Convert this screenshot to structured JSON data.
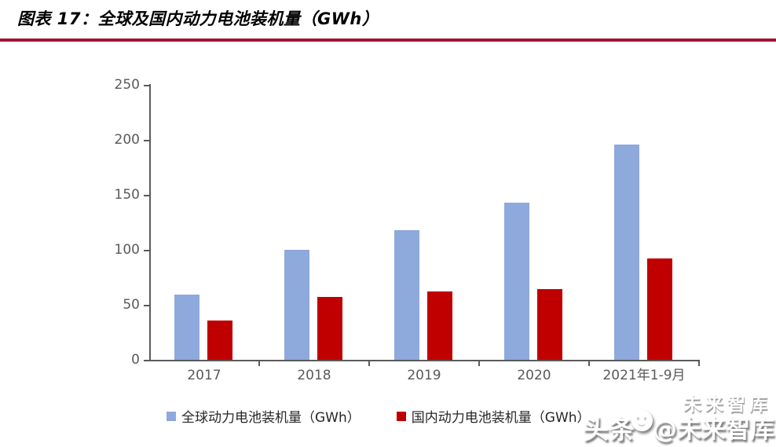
{
  "title": "图表 17：全球及国内动力电池装机量（GWh）",
  "colors": {
    "title_rule": "#A21535",
    "axis_line": "#5a5a5a",
    "axis_label": "#595959",
    "legend_text": "#262626",
    "global_series": "#8EA9DB",
    "domestic_series": "#C00000"
  },
  "chart_data": {
    "type": "bar",
    "title": "全球及国内动力电池装机量（GWh）",
    "categories": [
      "2017",
      "2018",
      "2019",
      "2020",
      "2021年1-9月"
    ],
    "series": [
      {
        "name": "全球动力电池装机量（GWh）",
        "color": "#8EA9DB",
        "values": [
          59,
          100,
          118,
          143,
          196
        ]
      },
      {
        "name": "国内动力电池装机量（GWh）",
        "color": "#C00000",
        "values": [
          36,
          57,
          62,
          64,
          92
        ]
      }
    ],
    "xlabel": "",
    "ylabel": "",
    "ylim": [
      0,
      250
    ],
    "yticks": [
      0,
      50,
      100,
      150,
      200,
      250
    ],
    "grid": false,
    "legend_position": "bottom"
  },
  "watermark": {
    "ghost": "未来智库",
    "app": "头条",
    "handle": "@未来智库"
  }
}
